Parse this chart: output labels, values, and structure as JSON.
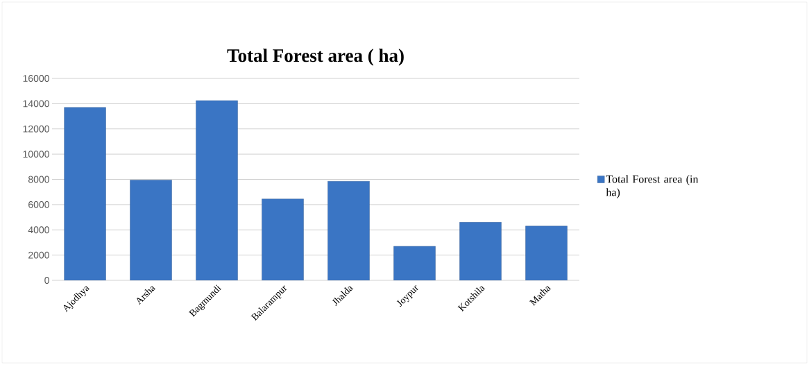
{
  "chart_data": {
    "type": "bar",
    "title": "Total Forest area ( ha)",
    "categories": [
      "Ajodhya",
      "Arsha",
      "Bagmundi",
      "Balarampur",
      "Jhalda",
      "Joypur",
      "Kotshila",
      "Matha"
    ],
    "series": [
      {
        "name": "Total Forest area (in ha)",
        "color": "#3a75c4",
        "values": [
          13700,
          7950,
          14250,
          6450,
          7850,
          2700,
          4600,
          4300
        ]
      }
    ],
    "ylim": [
      0,
      16000
    ],
    "yticks": [
      0,
      2000,
      4000,
      6000,
      8000,
      10000,
      12000,
      14000,
      16000
    ],
    "grid": "y",
    "legend": "right"
  }
}
